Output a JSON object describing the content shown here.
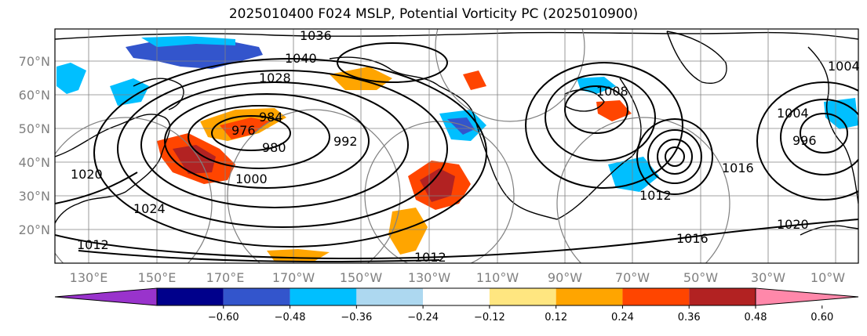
{
  "title": "2025010400 F024 MSLP, Potential Vorticity PC (2025010900)",
  "map": {
    "lat_labels": [
      "70°N",
      "60°N",
      "50°N",
      "40°N",
      "30°N",
      "20°N"
    ],
    "lon_labels": [
      "130°E",
      "150°E",
      "170°E",
      "170°W",
      "150°W",
      "130°W",
      "110°W",
      "90°W",
      "70°W",
      "50°W",
      "30°W",
      "10°W"
    ],
    "isobar_labels": [
      {
        "v": "1036"
      },
      {
        "v": "1040"
      },
      {
        "v": "1028"
      },
      {
        "v": "1020"
      },
      {
        "v": "1024"
      },
      {
        "v": "1012"
      },
      {
        "v": "976"
      },
      {
        "v": "984"
      },
      {
        "v": "980"
      },
      {
        "v": "1000"
      },
      {
        "v": "992"
      },
      {
        "v": "1012"
      },
      {
        "v": "1008"
      },
      {
        "v": "1012"
      },
      {
        "v": "1016"
      },
      {
        "v": "1016"
      },
      {
        "v": "1020"
      },
      {
        "v": "1004"
      },
      {
        "v": "1004"
      },
      {
        "v": "996"
      }
    ]
  },
  "colorbar": {
    "ticks": [
      "−0.60",
      "−0.48",
      "−0.36",
      "−0.24",
      "−0.12",
      "0.12",
      "0.24",
      "0.36",
      "0.48",
      "0.60"
    ],
    "colors": [
      "#9933cc",
      "#00008b",
      "#3355cc",
      "#00bfff",
      "#add8f0",
      "#ffffff",
      "#ffe680",
      "#ffa500",
      "#ff4500",
      "#b22222",
      "#ff88aa"
    ]
  }
}
